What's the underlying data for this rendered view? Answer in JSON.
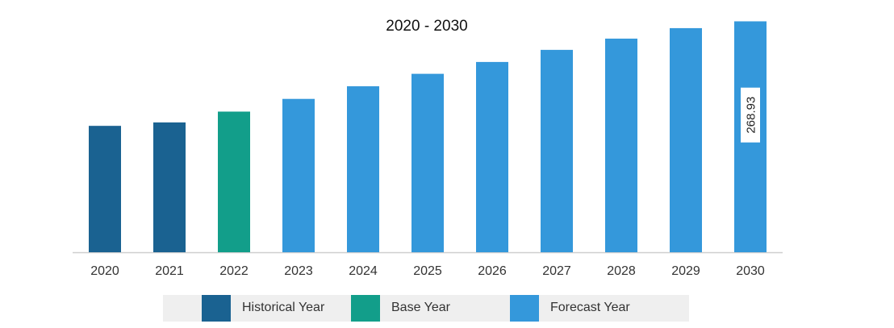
{
  "chart_data": {
    "type": "bar",
    "title": "2020 - 2030",
    "categories": [
      "2020",
      "2021",
      "2022",
      "2023",
      "2024",
      "2025",
      "2026",
      "2027",
      "2028",
      "2029",
      "2030"
    ],
    "values": [
      147.2,
      151.2,
      163.8,
      178.6,
      193.3,
      207.8,
      221.6,
      235.7,
      248.8,
      261.0,
      268.93
    ],
    "bar_types": [
      "historical",
      "historical",
      "base",
      "forecast",
      "forecast",
      "forecast",
      "forecast",
      "forecast",
      "forecast",
      "forecast",
      "forecast"
    ],
    "ylim": [
      0,
      275
    ],
    "grid": false,
    "data_labels": [
      {
        "category": "2030",
        "text": "268.93"
      }
    ],
    "legend_position": "bottom",
    "legend": [
      {
        "key": "historical",
        "label": "Historical Year",
        "color": "#1a6291"
      },
      {
        "key": "base",
        "label": "Base Year",
        "color": "#129e8a"
      },
      {
        "key": "forecast",
        "label": "Forecast Year",
        "color": "#3498db"
      }
    ],
    "colors": {
      "historical": "#1a6291",
      "base": "#129e8a",
      "forecast": "#3498db",
      "axis": "#cfcfcf"
    }
  }
}
